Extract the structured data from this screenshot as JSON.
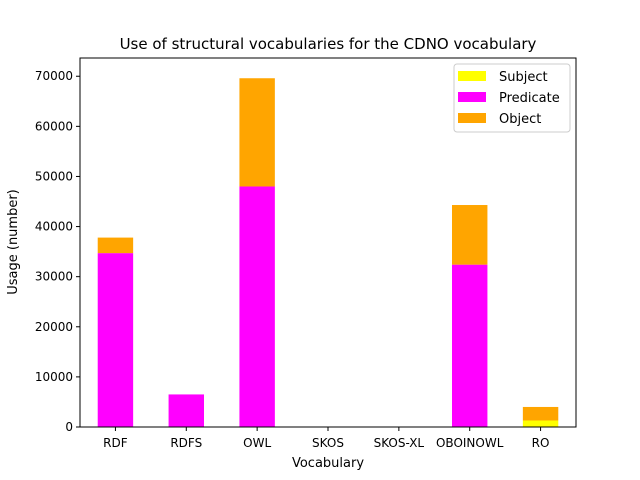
{
  "chart_data": {
    "type": "bar",
    "stacked": true,
    "title": "Use of structural vocabularies for the CDNO vocabulary",
    "xlabel": "Vocabulary",
    "ylabel": "Usage (number)",
    "ylim": [
      0,
      70000
    ],
    "yticks": [
      0,
      10000,
      20000,
      30000,
      40000,
      50000,
      60000,
      70000
    ],
    "categories": [
      "RDF",
      "RDFS",
      "OWL",
      "SKOS",
      "SKOS-XL",
      "OBOINOWL",
      "RO"
    ],
    "series": [
      {
        "name": "Subject",
        "color": "#ffff00",
        "values": [
          0,
          0,
          0,
          0,
          0,
          0,
          1300
        ]
      },
      {
        "name": "Predicate",
        "color": "#ff00ff",
        "values": [
          34700,
          6500,
          48000,
          0,
          0,
          32400,
          0
        ]
      },
      {
        "name": "Object",
        "color": "#ffa500",
        "values": [
          3100,
          0,
          21600,
          0,
          0,
          11900,
          2700
        ]
      }
    ],
    "grid": false,
    "legend": "top-right"
  }
}
